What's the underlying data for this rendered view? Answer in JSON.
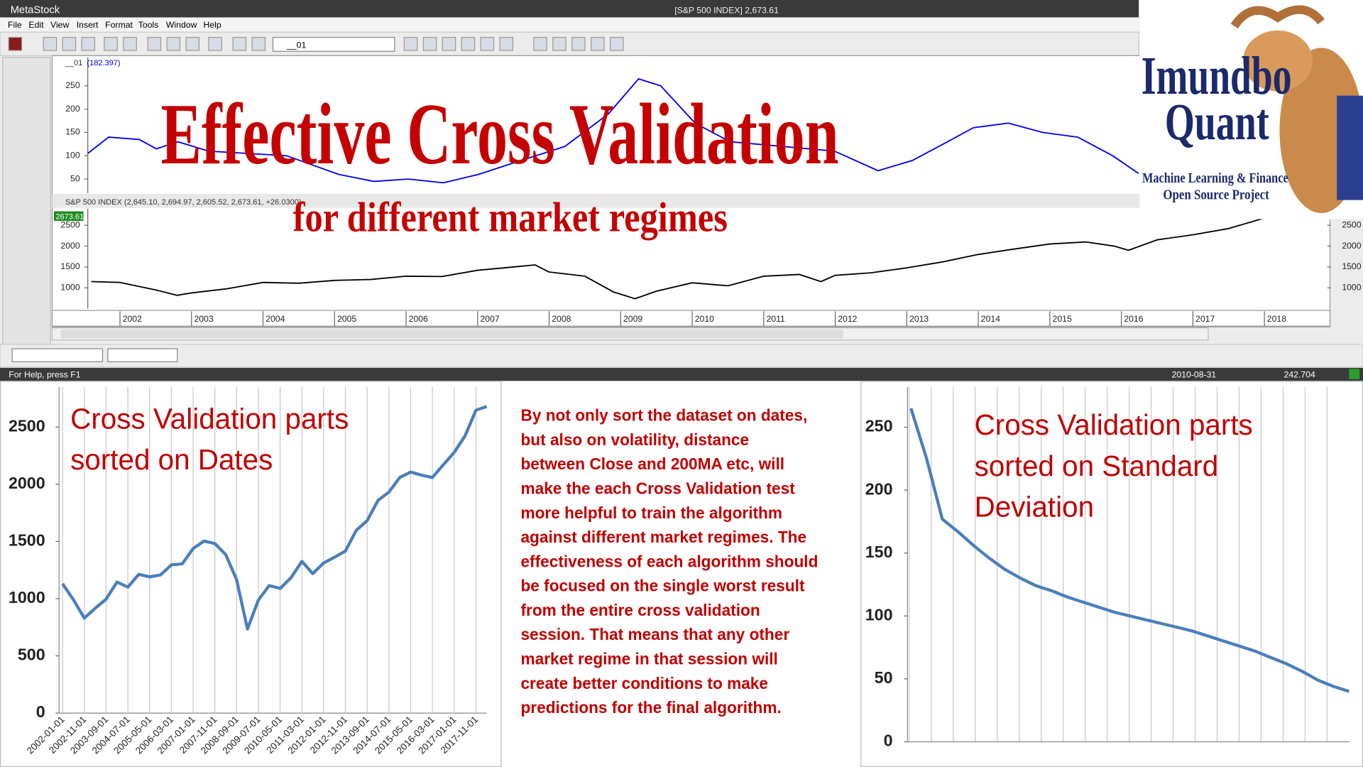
{
  "app": {
    "title": "MetaStock",
    "window_title": "[S&P 500 INDEX]   2,673.61",
    "menu": [
      "File",
      "Edit",
      "View",
      "Insert",
      "Format",
      "Tools",
      "Window",
      "Help"
    ],
    "combo": "__01",
    "status": "For Help, press F1",
    "status_date": "2010-08-31",
    "status_value": "242.704"
  },
  "overlay": {
    "title": "Effective Cross Validation",
    "subtitle": "for different market regimes"
  },
  "logo": {
    "line1": "Imundbo",
    "line2": "Quant",
    "tagline1": "Machine Learning & Finance",
    "tagline2": "Open Source Project"
  },
  "note": [
    "By not only sort the dataset on dates,",
    "but also on volatility, distance",
    "between Close and 200MA etc, will",
    "make the each Cross Validation test",
    "more helpful to train the algorithm",
    "against different market regimes. The",
    "effectiveness of each algorithm should",
    "be focused on the single worst result",
    "from the entire cross validation",
    "session. That means that any other",
    "market regime in that session will",
    "create better conditions to make",
    "predictions for the final algorithm."
  ],
  "chart_data": [
    {
      "type": "line",
      "label": "__01",
      "value_label": "(182.397)",
      "color": "#0000ee",
      "x": [
        2001.55,
        2001.84,
        2002.27,
        2002.51,
        2002.81,
        2003.24,
        2004.33,
        2005.06,
        2005.55,
        2006.03,
        2006.52,
        2007.01,
        2007.61,
        2008.22,
        2008.83,
        2009.25,
        2009.56,
        2010.04,
        2010.53,
        2011.26,
        2011.99,
        2012.6,
        2013.08,
        2013.57,
        2013.93,
        2014.42,
        2014.9,
        2015.39,
        2015.88,
        2016.24
      ],
      "values": [
        105,
        140,
        135,
        115,
        130,
        110,
        100,
        60,
        45,
        50,
        42,
        60,
        90,
        120,
        190,
        265,
        250,
        170,
        130,
        120,
        110,
        68,
        90,
        130,
        160,
        170,
        150,
        140,
        100,
        62
      ],
      "xlim": [
        2001.55,
        2018.88
      ],
      "ylim": [
        20,
        311
      ],
      "yticks": [
        50,
        100,
        150,
        200,
        250
      ]
    },
    {
      "type": "line",
      "label": "S&P 500 INDEX (2,645.10, 2,694.97, 2,605.52, 2,673.61, +26.0300)",
      "value_label": "2673.61",
      "color": "#000000",
      "x": [
        2001.6,
        2002,
        2002.5,
        2002.8,
        2003,
        2003.5,
        2004,
        2004.5,
        2005,
        2005.5,
        2006,
        2006.5,
        2007,
        2007.5,
        2007.8,
        2008,
        2008.5,
        2008.9,
        2009.2,
        2009.5,
        2010,
        2010.5,
        2011,
        2011.5,
        2011.8,
        2012,
        2012.5,
        2013,
        2013.5,
        2014,
        2014.5,
        2015,
        2015.5,
        2015.9,
        2016.1,
        2016.5,
        2017,
        2017.5,
        2018
      ],
      "values": [
        1150,
        1130,
        950,
        820,
        880,
        980,
        1130,
        1110,
        1180,
        1200,
        1280,
        1270,
        1420,
        1500,
        1550,
        1380,
        1280,
        900,
        740,
        920,
        1120,
        1050,
        1280,
        1320,
        1150,
        1300,
        1360,
        1480,
        1620,
        1800,
        1930,
        2050,
        2100,
        2000,
        1900,
        2150,
        2270,
        2420,
        2670
      ],
      "xlim": [
        2001.55,
        2018.88
      ],
      "xticks": [
        2002,
        2003,
        2004,
        2005,
        2006,
        2007,
        2008,
        2009,
        2010,
        2011,
        2012,
        2013,
        2014,
        2015,
        2016,
        2017,
        2018
      ],
      "ylim": [
        500,
        2896
      ],
      "yticks": [
        1000,
        1500,
        2000,
        2500
      ]
    },
    {
      "type": "line",
      "title": [
        "Cross Validation parts",
        "sorted on Dates"
      ],
      "color": "#4a7ebb",
      "categories": [
        "2002-01-01",
        null,
        "2002-11-01",
        null,
        "2003-09-01",
        null,
        "2004-07-01",
        null,
        "2005-05-01",
        null,
        "2006-03-01",
        null,
        "2007-01-01",
        null,
        "2007-11-01",
        null,
        "2008-09-01",
        null,
        "2009-07-01",
        null,
        "2010-05-01",
        null,
        "2011-03-01",
        null,
        "2012-01-01",
        null,
        "2012-11-01",
        null,
        "2013-09-01",
        null,
        "2014-07-01",
        null,
        "2015-05-01",
        null,
        "2016-03-01",
        null,
        "2017-01-01",
        null,
        "2017-11-01",
        null
      ],
      "values": [
        1130,
        990,
        830,
        916,
        996,
        1145,
        1101,
        1212,
        1191,
        1207,
        1295,
        1304,
        1438,
        1503,
        1481,
        1385,
        1166,
        735,
        987,
        1115,
        1089,
        1183,
        1326,
        1219,
        1312,
        1362,
        1416,
        1597,
        1682,
        1859,
        1931,
        2059,
        2107,
        2079,
        2059,
        2170,
        2278,
        2423,
        2647,
        2680
      ],
      "ylim": [
        0,
        2850
      ],
      "yticks": [
        0,
        500,
        1000,
        1500,
        2000,
        2500
      ]
    },
    {
      "type": "line",
      "title": [
        "Cross Validation parts",
        "sorted on Standard",
        "Deviation"
      ],
      "color": "#4a7ebb",
      "values": [
        265,
        225,
        177,
        167,
        156,
        146,
        137,
        130,
        124,
        120,
        115,
        111,
        107,
        103,
        100,
        97,
        94,
        91,
        88,
        84,
        80,
        76,
        72,
        67,
        62,
        56,
        49,
        44,
        40
      ],
      "ylim": [
        0,
        282
      ],
      "yticks": [
        0,
        50,
        100,
        150,
        200,
        250
      ]
    }
  ]
}
